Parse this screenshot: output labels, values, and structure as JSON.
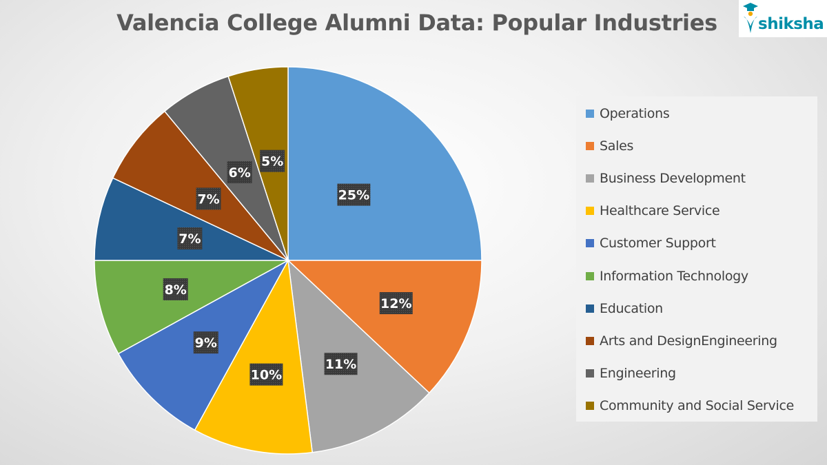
{
  "logo": {
    "text": "shiksha",
    "colors": {
      "primary": "#008ea8",
      "accent": "#f2a900"
    }
  },
  "chart_data": {
    "type": "pie",
    "title": "Valencia College Alumni Data: Popular Industries",
    "legend_placement": "right",
    "label_style": "white bold text on dark patterned callout boxes",
    "categories": [
      "Operations",
      "Sales",
      "Business Development",
      "Healthcare Service",
      "Customer Support",
      "Information Technology",
      "Education",
      "Arts and DesignEngineering",
      "Engineering",
      "Community and Social Service"
    ],
    "values": [
      25,
      12,
      11,
      10,
      9,
      8,
      7,
      7,
      6,
      5
    ],
    "data_labels": [
      "25%",
      "12%",
      "11%",
      "10%",
      "9%",
      "8%",
      "7%",
      "7%",
      "6%",
      "5%"
    ],
    "colors": [
      "#5b9bd5",
      "#ed7d31",
      "#a5a5a5",
      "#ffc000",
      "#4472c4",
      "#70ad47",
      "#255e91",
      "#9e480e",
      "#636363",
      "#997300"
    ]
  }
}
